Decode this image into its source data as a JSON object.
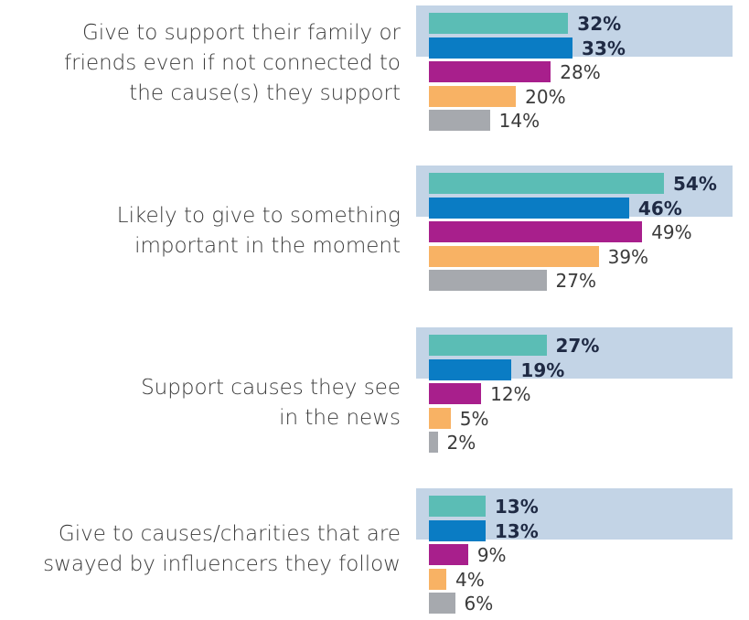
{
  "colors": {
    "highlight": "#c3d4e6",
    "series_colors": [
      "#5bbdb5",
      "#0a7cc4",
      "#a81f8c",
      "#f8b264",
      "#a6a9ae"
    ]
  },
  "chart_data": {
    "type": "bar",
    "orientation": "horizontal",
    "categories": [
      "Give to support their family or friends even if not connected to the cause(s) they support",
      "Likely to give to something important in the moment",
      "Support causes they see in the news",
      "Give to causes/charities that are swayed by influencers they follow"
    ],
    "category_lines": [
      [
        "Give to support their family or",
        "friends even if not connected to",
        "the cause(s) they support"
      ],
      [
        "Likely to give to something",
        "important in the moment"
      ],
      [
        "Support causes they see",
        "in the news"
      ],
      [
        "Give to causes/charities that are",
        "swayed by influencers they follow"
      ]
    ],
    "series": [
      {
        "values": [
          32,
          54,
          27,
          13
        ],
        "highlighted": true
      },
      {
        "values": [
          33,
          46,
          19,
          13
        ],
        "highlighted": true
      },
      {
        "values": [
          28,
          49,
          12,
          9
        ],
        "highlighted": false
      },
      {
        "values": [
          20,
          39,
          5,
          4
        ],
        "highlighted": false
      },
      {
        "values": [
          14,
          27,
          2,
          6
        ],
        "highlighted": false
      }
    ],
    "value_labels": [
      [
        "32%",
        "33%",
        "28%",
        "20%",
        "14%"
      ],
      [
        "54%",
        "46%",
        "49%",
        "39%",
        "27%"
      ],
      [
        "27%",
        "19%",
        "12%",
        "5%",
        "2%"
      ],
      [
        "13%",
        "13%",
        "9%",
        "4%",
        "6%"
      ]
    ],
    "xlim": [
      0,
      54
    ],
    "grid": false,
    "legend": "none"
  }
}
